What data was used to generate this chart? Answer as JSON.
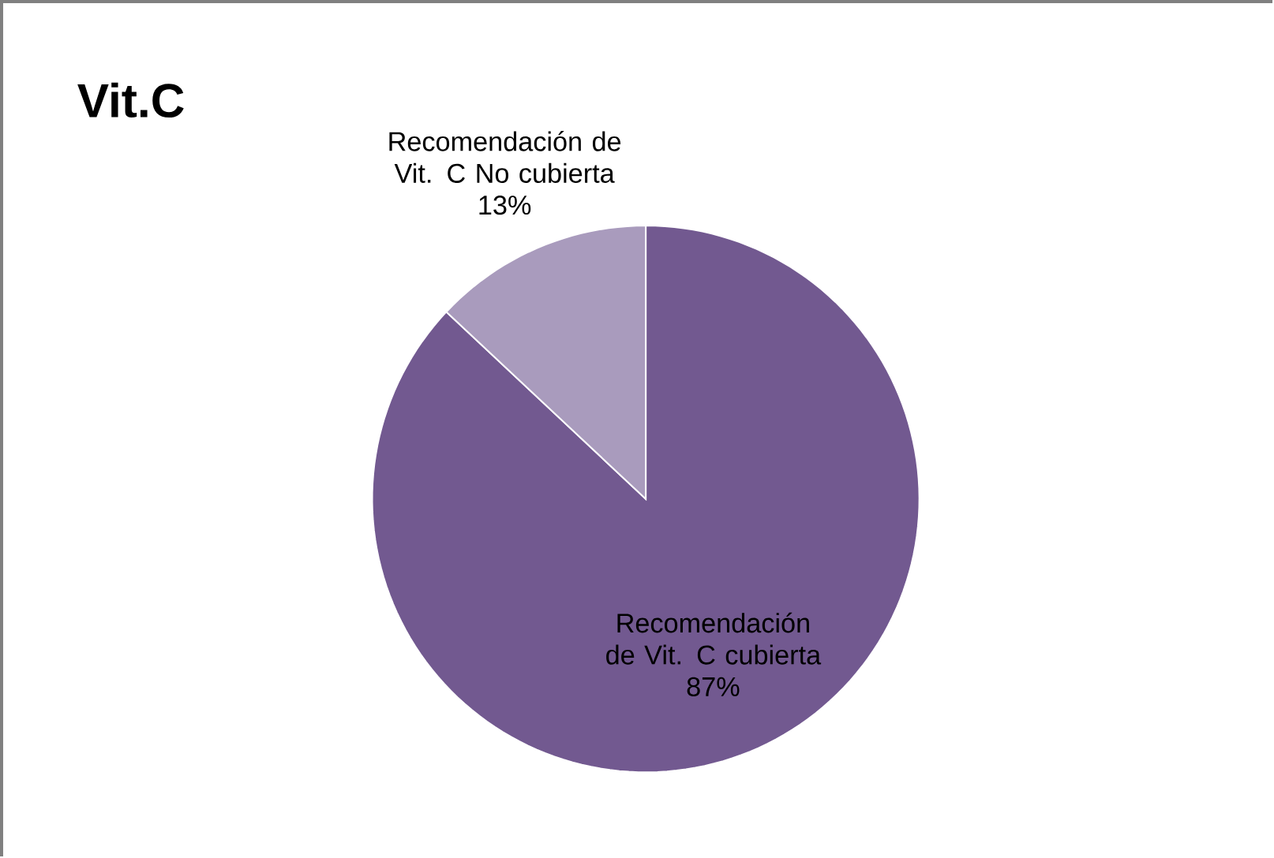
{
  "chart_data": {
    "type": "pie",
    "title": "Vit.C",
    "categories": [
      "Recomendación de Vit. C cubierta",
      "Recomendación de Vit. C No cubierta"
    ],
    "values": [
      87,
      13
    ],
    "colors": [
      "#725990",
      "#a99bbd"
    ],
    "value_labels": [
      "87%",
      "13%"
    ]
  }
}
